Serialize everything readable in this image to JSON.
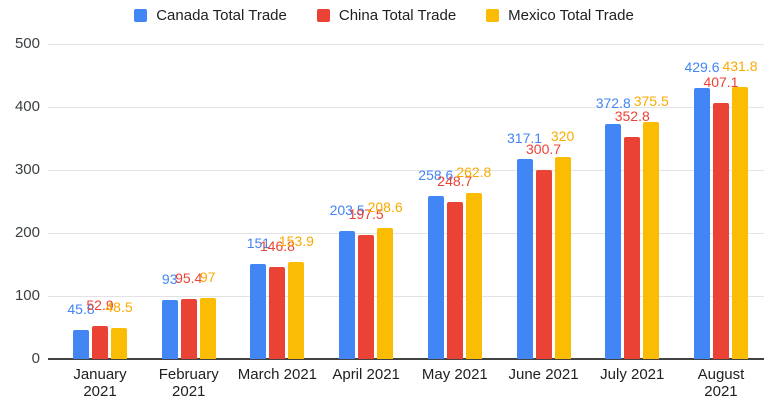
{
  "chart_data": {
    "type": "bar",
    "title": "",
    "xlabel": "",
    "ylabel": "",
    "ylim": [
      0,
      500
    ],
    "grid": true,
    "legend_position": "top",
    "yticks": [
      "0",
      "100",
      "200",
      "300",
      "400",
      "500"
    ],
    "categories": [
      "January 2021",
      "February 2021",
      "March 2021",
      "April 2021",
      "May 2021",
      "June 2021",
      "July 2021",
      "August 2021"
    ],
    "series": [
      {
        "name": "Canada Total Trade",
        "color": "#4285F4",
        "label_color": "#4285F4",
        "values": [
          45.8,
          93,
          151,
          203.5,
          258.6,
          317.1,
          372.8,
          429.6
        ],
        "labels": [
          "45.8",
          "93",
          "151",
          "203.5",
          "258.6",
          "317.1",
          "372.8",
          "429.6"
        ]
      },
      {
        "name": "China Total Trade",
        "color": "#EA4335",
        "label_color": "#EA4335",
        "values": [
          52.9,
          95.4,
          146.8,
          197.5,
          248.7,
          300.7,
          352.8,
          407.1
        ],
        "labels": [
          "52.9",
          "95.4",
          "146.8",
          "197.5",
          "248.7",
          "300.7",
          "352.8",
          "407.1"
        ]
      },
      {
        "name": "Mexico Total Trade",
        "color": "#FBBC04",
        "label_color": "#F9AB00",
        "values": [
          48.5,
          97,
          153.9,
          208.6,
          262.8,
          320,
          375.5,
          431.8
        ],
        "labels": [
          "48.5",
          "97",
          "153.9",
          "208.6",
          "262.8",
          "320",
          "375.5",
          "431.8"
        ]
      }
    ]
  }
}
